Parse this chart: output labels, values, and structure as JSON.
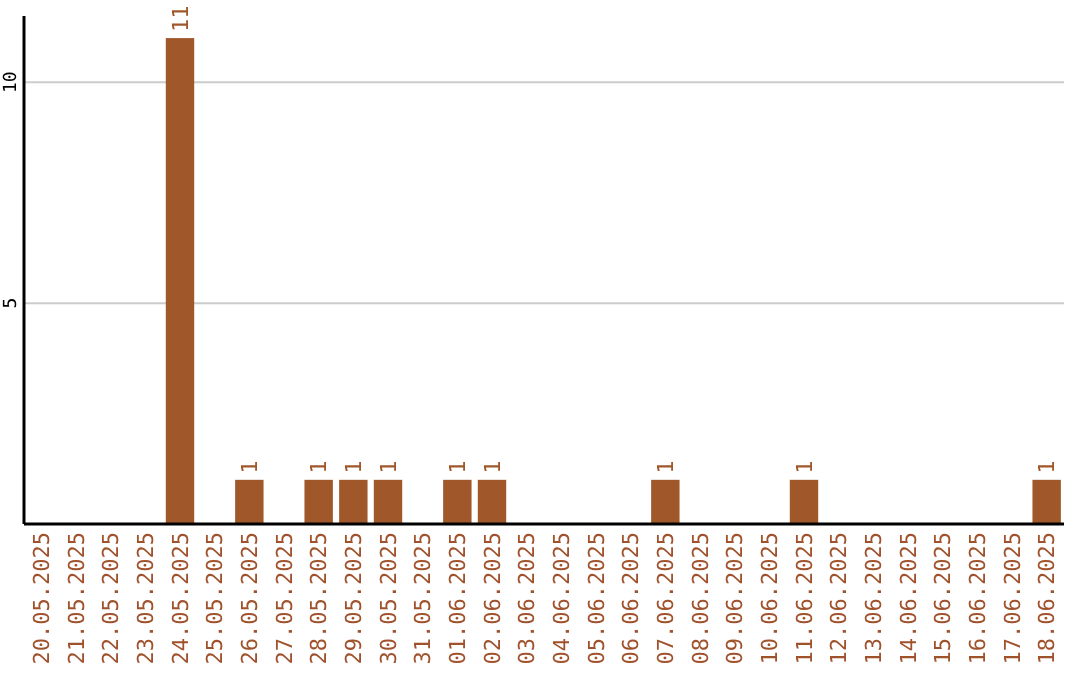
{
  "chart_data": {
    "type": "bar",
    "categories": [
      "20.05.2025",
      "21.05.2025",
      "22.05.2025",
      "23.05.2025",
      "24.05.2025",
      "25.05.2025",
      "26.05.2025",
      "27.05.2025",
      "28.05.2025",
      "29.05.2025",
      "30.05.2025",
      "31.05.2025",
      "01.06.2025",
      "02.06.2025",
      "03.06.2025",
      "04.06.2025",
      "05.06.2025",
      "06.06.2025",
      "07.06.2025",
      "08.06.2025",
      "09.06.2025",
      "10.06.2025",
      "11.06.2025",
      "12.06.2025",
      "13.06.2025",
      "14.06.2025",
      "15.06.2025",
      "16.06.2025",
      "17.06.2025",
      "18.06.2025"
    ],
    "values": [
      0,
      0,
      0,
      0,
      11,
      0,
      1,
      0,
      1,
      1,
      1,
      0,
      1,
      1,
      0,
      0,
      0,
      0,
      1,
      0,
      0,
      0,
      1,
      0,
      0,
      0,
      0,
      0,
      0,
      1
    ],
    "value_labels": [
      null,
      null,
      null,
      null,
      "11",
      null,
      "1",
      null,
      "1",
      "1",
      "1",
      null,
      "1",
      "1",
      null,
      null,
      null,
      null,
      "1",
      null,
      null,
      null,
      "1",
      null,
      null,
      null,
      null,
      null,
      null,
      "1"
    ],
    "color": "#a0582a",
    "ylim": [
      0,
      11.5
    ],
    "yticks": [
      5,
      10
    ],
    "grid": "y"
  }
}
